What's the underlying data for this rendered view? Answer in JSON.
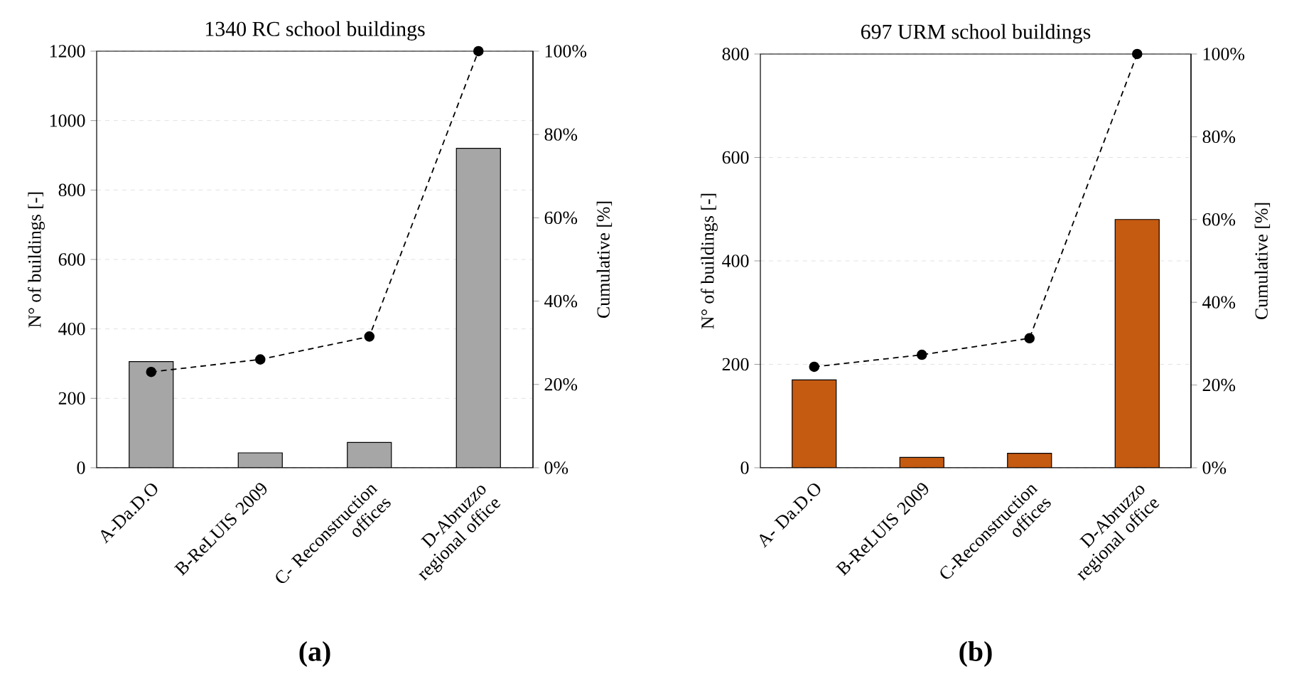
{
  "chart_data": [
    {
      "type": "bar",
      "title": "1340 RC school buildings",
      "ylabel": "N° of buildings [-]",
      "y2label": "Cumulative  [%]",
      "categories": [
        "A-Da.D.O",
        "B-ReLUIS 2009",
        "C- Reconstruction offices",
        "D-Abruzzo regional office"
      ],
      "series": [
        {
          "color": "#a6a6a6",
          "values": [
            306,
            43,
            73,
            920
          ]
        },
        {
          "type": "line",
          "axis": "y2",
          "color": "#000000",
          "line_style": "dashed",
          "marker": "circle",
          "values": [
            23,
            26,
            31.5,
            100
          ]
        }
      ],
      "ylim": [
        0,
        1200
      ],
      "yticks": [
        0,
        200,
        400,
        600,
        800,
        1000,
        1200
      ],
      "y2lim": [
        0,
        100
      ],
      "y2ticks": [
        {
          "value": 0,
          "label": "0%"
        },
        {
          "value": 20,
          "label": "20%"
        },
        {
          "value": 40,
          "label": "40%"
        },
        {
          "value": 60,
          "label": "60%"
        },
        {
          "value": 80,
          "label": "80%"
        },
        {
          "value": 100,
          "label": "100%"
        }
      ],
      "grid": "y",
      "annotations": [
        "(a)"
      ]
    },
    {
      "type": "bar",
      "title": "697 URM school buildings",
      "ylabel": "N° of buildings [-]",
      "y2label": "Cumulative  [%]",
      "categories": [
        "A- Da.D.O",
        "B-ReLUIS 2009",
        "C-Reconstruction offices",
        "D-Abruzzo regional office"
      ],
      "series": [
        {
          "color": "#c55a11",
          "values": [
            170,
            20,
            28,
            480
          ]
        },
        {
          "type": "line",
          "axis": "y2",
          "color": "#000000",
          "line_style": "dashed",
          "marker": "circle",
          "values": [
            24.4,
            27.3,
            31.3,
            100
          ]
        }
      ],
      "ylim": [
        0,
        800
      ],
      "yticks": [
        0,
        200,
        400,
        600,
        800
      ],
      "y2lim": [
        0,
        100
      ],
      "y2ticks": [
        {
          "value": 0,
          "label": "0%"
        },
        {
          "value": 20,
          "label": "20%"
        },
        {
          "value": 40,
          "label": "40%"
        },
        {
          "value": 60,
          "label": "60%"
        },
        {
          "value": 80,
          "label": "80%"
        },
        {
          "value": 100,
          "label": "100%"
        }
      ],
      "grid": "y",
      "annotations": [
        "(b)"
      ]
    }
  ]
}
